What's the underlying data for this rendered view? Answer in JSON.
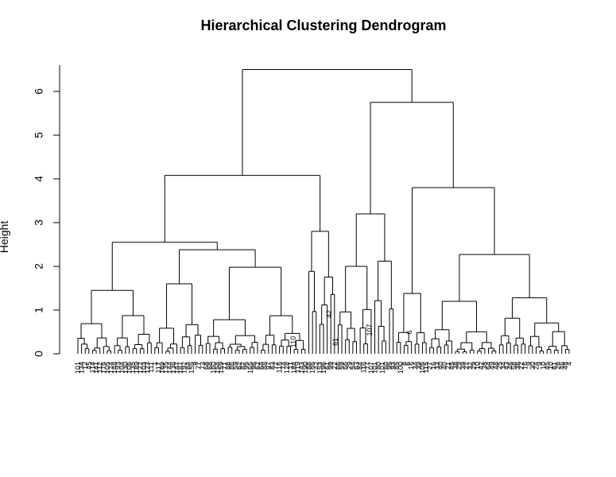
{
  "chart_data": {
    "type": "dendrogram",
    "title": "Hierarchical Clustering Dendrogram",
    "xlabel": "",
    "ylabel": "Height",
    "ylim": [
      0,
      6.6
    ],
    "yticks": [
      0,
      1,
      2,
      3,
      4,
      5,
      6
    ],
    "leaf_labels": [
      "101",
      "134",
      "12",
      "45",
      "114",
      "141",
      "112",
      "175",
      "105",
      "124",
      "148",
      "193",
      "104",
      "130",
      "105",
      "135",
      "189",
      "122",
      "103",
      "123",
      "111",
      "1",
      "117",
      "169",
      "135",
      "144",
      "136",
      "147",
      "187",
      "192",
      "84",
      "155",
      "9",
      "77",
      "73",
      "68",
      "68",
      "160",
      "158",
      "159",
      "71",
      "86",
      "86",
      "59",
      "62",
      "82",
      "95",
      "165",
      "96",
      "62",
      "64",
      "88",
      "97",
      "83",
      "72",
      "116",
      "74",
      "128",
      "11",
      "184",
      "119",
      "143",
      "190",
      "88",
      "186",
      "42",
      "153",
      "196",
      "61",
      "99",
      "22",
      "66",
      "59",
      "66",
      "29",
      "54",
      "63",
      "84",
      "116",
      "77",
      "107",
      "101",
      "80",
      "101",
      "60",
      "95",
      "93",
      "85",
      "100",
      "8",
      "6",
      "16",
      "34",
      "39",
      "105",
      "115",
      "27",
      "16",
      "33",
      "40",
      "40",
      "21",
      "45",
      "38",
      "29",
      "39",
      "27",
      "32",
      "29",
      "10",
      "42",
      "38",
      "64",
      "49",
      "48",
      "25",
      "34",
      "43",
      "46",
      "58",
      "36",
      "22",
      "16",
      "9",
      "30",
      "24",
      "9",
      "10",
      "45",
      "10",
      "61",
      "26",
      "46",
      "48",
      "4"
    ],
    "clusters": [
      {
        "height": 6.5,
        "label": ""
      },
      {
        "height": 5.75,
        "label": ""
      },
      {
        "height": 4.08,
        "label": ""
      },
      {
        "height": 3.8,
        "label": ""
      },
      {
        "height": 3.2,
        "label": ""
      },
      {
        "height": 2.8,
        "label": ""
      },
      {
        "height": 2.55,
        "label": ""
      },
      {
        "height": 2.38,
        "label": ""
      },
      {
        "height": 2.27,
        "label": ""
      }
    ],
    "inline_labels": [
      "110",
      "42",
      "61",
      "107",
      "6"
    ]
  }
}
